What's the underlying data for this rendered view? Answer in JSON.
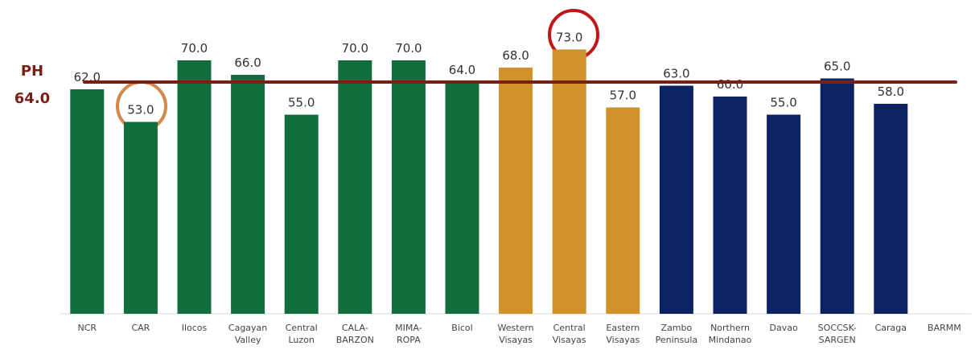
{
  "chart_data": {
    "type": "bar",
    "categories": [
      "NCR",
      "CAR",
      "Ilocos",
      "Cagayan Valley",
      "Central Luzon",
      "CALA-BARZON",
      "MIMA-ROPA",
      "Bicol",
      "Western Visayas",
      "Central Visayas",
      "Eastern Visayas",
      "Zambo Peninsula",
      "Northern Mindanao",
      "Davao",
      "SOCCSK-SARGEN",
      "Caraga",
      "BARMM"
    ],
    "values": [
      62,
      53,
      70,
      66,
      55,
      70,
      70,
      64,
      68,
      73,
      57,
      63,
      60,
      55,
      65,
      58,
      null
    ],
    "value_labels": [
      "62.0",
      "53.0",
      "70.0",
      "66.0",
      "55.0",
      "70.0",
      "70.0",
      "64.0",
      "68.0",
      "73.0",
      "57.0",
      "63.0",
      "60.0",
      "55.0",
      "65.0",
      "58.0",
      null
    ],
    "colors": [
      "#116d3c",
      "#116d3c",
      "#116d3c",
      "#116d3c",
      "#116d3c",
      "#116d3c",
      "#116d3c",
      "#116d3c",
      "#d0912a",
      "#d0912a",
      "#d0912a",
      "#0b2263",
      "#0b2263",
      "#0b2263",
      "#0b2263",
      "#0b2263",
      "#0b2263"
    ],
    "ylim": [
      0,
      86
    ],
    "reference": {
      "label": "PH",
      "value": 64,
      "value_label": "64.0",
      "color": "#7a1f14"
    }
  }
}
